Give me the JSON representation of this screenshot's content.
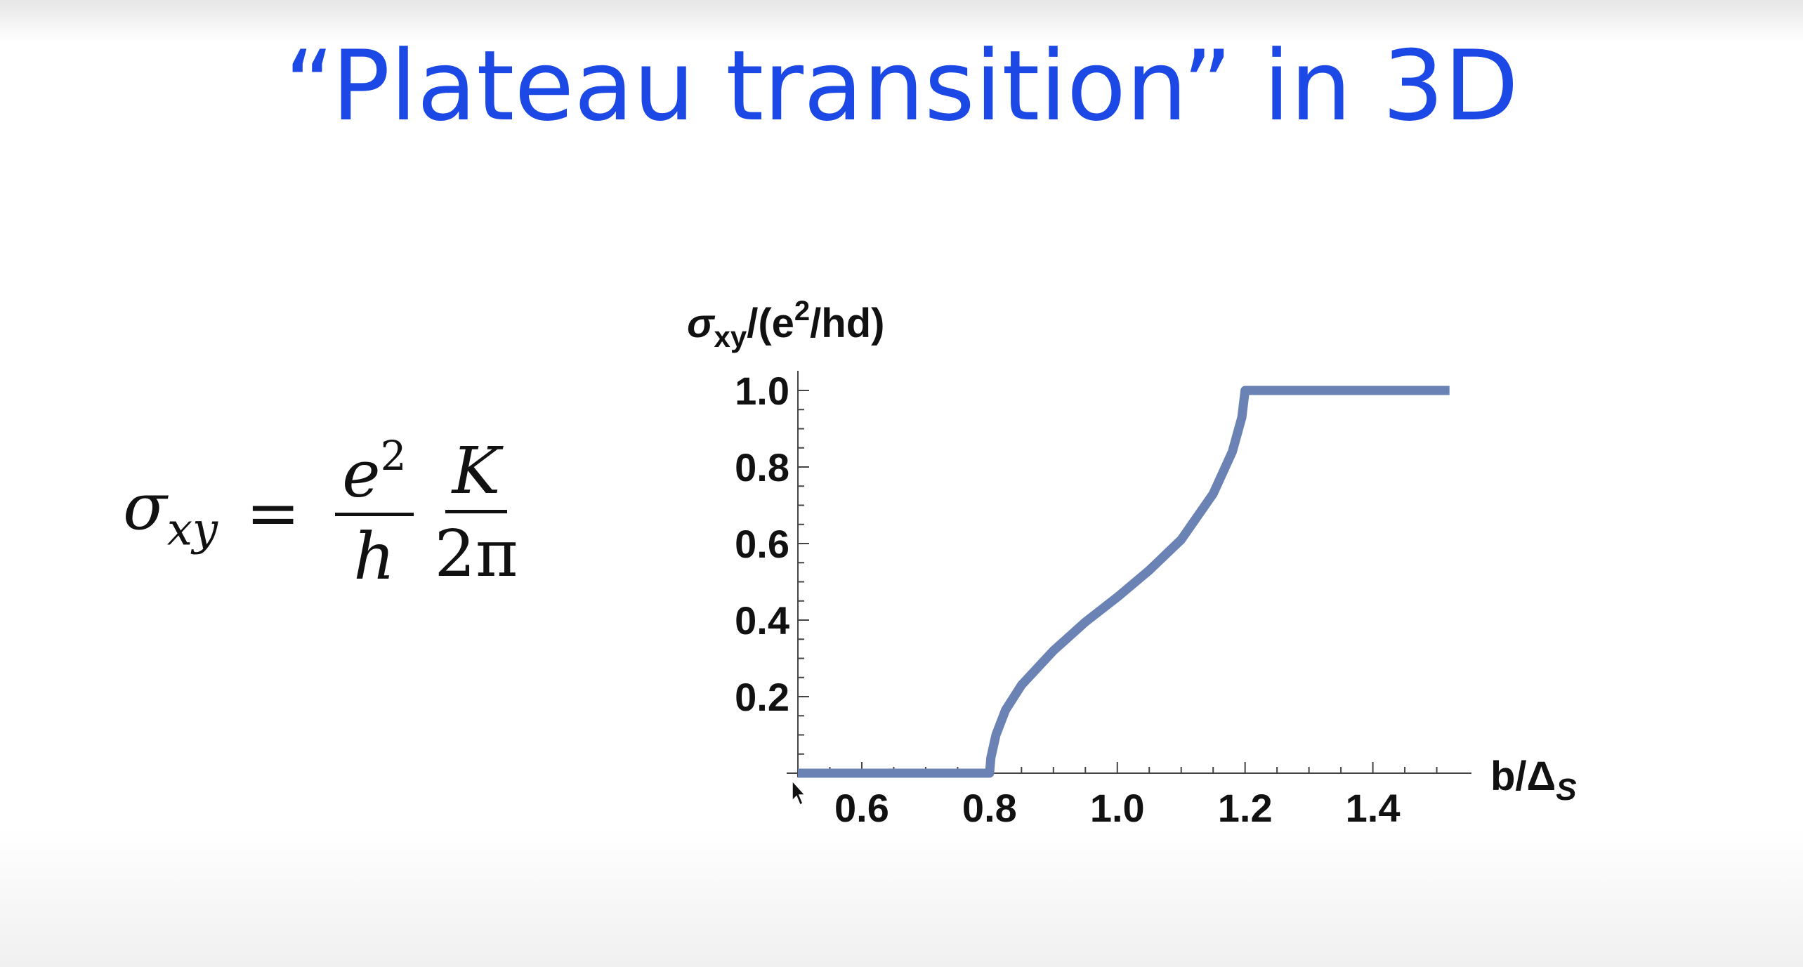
{
  "slide": {
    "title": "“Plateau transition” in 3D"
  },
  "formula": {
    "lhs_symbol": "σ",
    "lhs_subscript": "xy",
    "equals": "=",
    "frac1_num_base": "e",
    "frac1_num_exp": "2",
    "frac1_den": "h",
    "frac2_num": "K",
    "frac2_den": "2π"
  },
  "chart_data": {
    "type": "line",
    "title": "",
    "ylabel": "σxy/(e²/hd)",
    "ylabel_parts": {
      "symbol": "σ",
      "subscript": "xy",
      "middle": "/(e",
      "exp": "2",
      "end": "/hd)"
    },
    "xlabel": "b/ΔS",
    "xlabel_parts": {
      "main": "b/Δ",
      "subscript": "S"
    },
    "xlim": [
      0.5,
      1.55
    ],
    "ylim": [
      0.0,
      1.0
    ],
    "x_ticks": [
      0.6,
      0.8,
      1.0,
      1.2,
      1.4
    ],
    "x_tick_labels": [
      "0.6",
      "0.8",
      "1.0",
      "1.2",
      "1.4"
    ],
    "y_ticks": [
      0.2,
      0.4,
      0.6,
      0.8,
      1.0
    ],
    "y_tick_labels": [
      "0.2",
      "0.4",
      "0.6",
      "0.8",
      "1.0"
    ],
    "grid": false,
    "series": [
      {
        "color": "#6a83b4",
        "x": [
          0.5,
          0.8,
          0.802,
          0.81,
          0.825,
          0.85,
          0.9,
          0.95,
          1.0,
          1.05,
          1.1,
          1.15,
          1.18,
          1.195,
          1.2,
          1.52
        ],
        "y": [
          0.0,
          0.0,
          0.04,
          0.1,
          0.165,
          0.23,
          0.32,
          0.395,
          0.46,
          0.53,
          0.61,
          0.73,
          0.84,
          0.93,
          1.0,
          1.0
        ]
      }
    ]
  }
}
